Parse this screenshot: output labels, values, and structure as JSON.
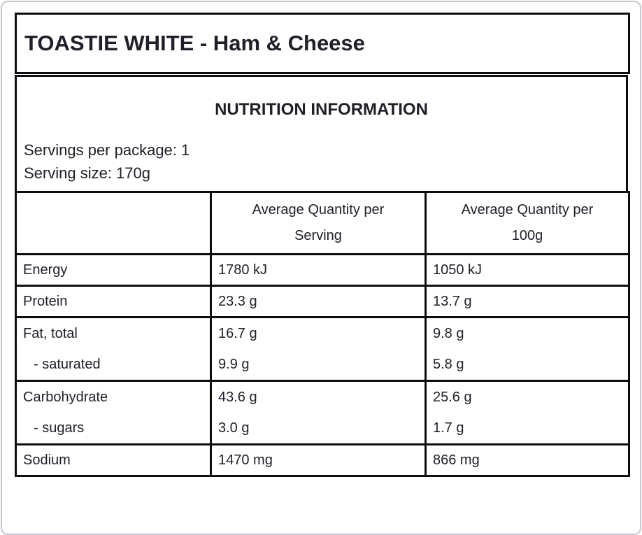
{
  "label": {
    "title": "TOASTIE WHITE - Ham & Cheese",
    "section_heading": "NUTRITION INFORMATION",
    "servings_per_package": "Servings per package: 1",
    "serving_size": "Serving size: 170g"
  },
  "table": {
    "columns": [
      {
        "line1": "",
        "line2": ""
      },
      {
        "line1": "Average Quantity per",
        "line2": "Serving"
      },
      {
        "line1": "Average Quantity per",
        "line2": "100g"
      }
    ],
    "rows": [
      {
        "lines": [
          {
            "nutrient": "Energy",
            "per_serving": "1780 kJ",
            "per_100g": "1050 kJ"
          }
        ]
      },
      {
        "lines": [
          {
            "nutrient": "Protein",
            "per_serving": "23.3 g",
            "per_100g": "13.7 g"
          }
        ]
      },
      {
        "lines": [
          {
            "nutrient": "Fat, total",
            "per_serving": "16.7 g",
            "per_100g": "9.8 g"
          },
          {
            "nutrient": "- saturated",
            "per_serving": "9.9 g",
            "per_100g": "5.8 g"
          }
        ]
      },
      {
        "lines": [
          {
            "nutrient": "Carbohydrate",
            "per_serving": "43.6 g",
            "per_100g": "25.6 g"
          },
          {
            "nutrient": "- sugars",
            "per_serving": "3.0 g",
            "per_100g": "1.7 g"
          }
        ]
      },
      {
        "lines": [
          {
            "nutrient": "Sodium",
            "per_serving": "1470 mg",
            "per_100g": "866 mg"
          }
        ]
      }
    ]
  },
  "colors": {
    "text": "#20202a",
    "box_border": "#0d0d12",
    "card_border": "#c8c8d2",
    "background": "#ffffff"
  }
}
